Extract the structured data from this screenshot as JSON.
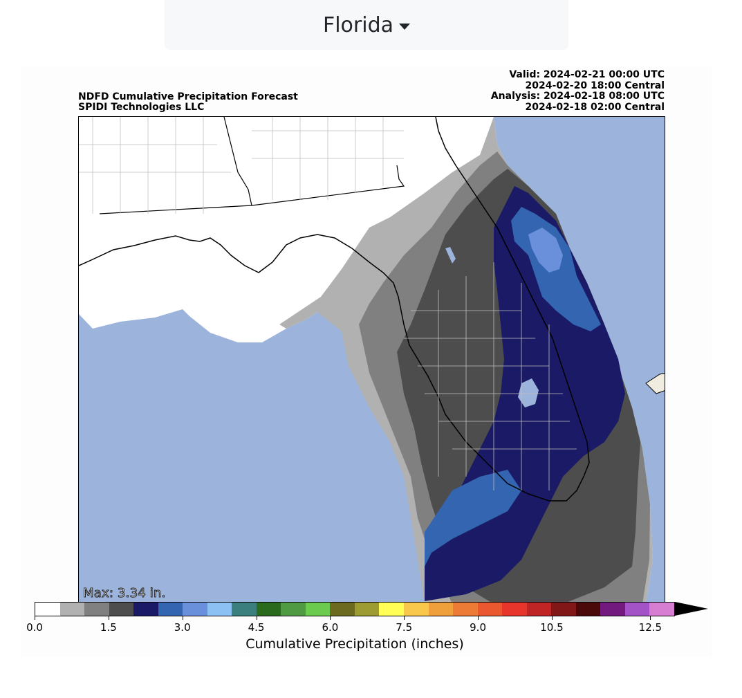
{
  "region_selector": {
    "label": "Florida"
  },
  "figure": {
    "title_left_line1": "NDFD Cumulative Precipitation Forecast",
    "title_left_line2": "SPIDI Technologies LLC",
    "valid_line1": "Valid: 2024-02-21 00:00 UTC",
    "valid_line2": "2024-02-20 18:00 Central",
    "analysis_line1": "Analysis: 2024-02-18 08:00 UTC",
    "analysis_line2": "2024-02-18 02:00 Central",
    "max_label": "Max: 3.34 in."
  },
  "colorbar": {
    "label": "Cumulative Precipitation (inches)",
    "ticks": [
      "0.0",
      "1.5",
      "3.0",
      "4.5",
      "6.0",
      "7.5",
      "9.0",
      "10.5",
      "12.5"
    ],
    "colors": [
      "#ffffff",
      "#b1b1b1",
      "#808080",
      "#4d4d4d",
      "#1a1a66",
      "#3465b0",
      "#6a8fdb",
      "#8cc1f4",
      "#3b7f7f",
      "#2a6a1f",
      "#4f9a42",
      "#6acb4f",
      "#6b6a1e",
      "#9c9c33",
      "#ffff55",
      "#f7c84b",
      "#f0a03a",
      "#ed7b35",
      "#e9582f",
      "#e7352b",
      "#c02525",
      "#821717",
      "#4a0a0a",
      "#731a7f",
      "#a353c6",
      "#d77dd2"
    ]
  },
  "map": {
    "ocean_color": "#9cb3db",
    "land_color": "#ffffff",
    "precip_colors": {
      "p05": "#b1b1b1",
      "p10": "#808080",
      "p15": "#4d4d4d",
      "p20": "#1a1a66",
      "p25": "#3465b0",
      "p30": "#6a8fdb"
    }
  }
}
